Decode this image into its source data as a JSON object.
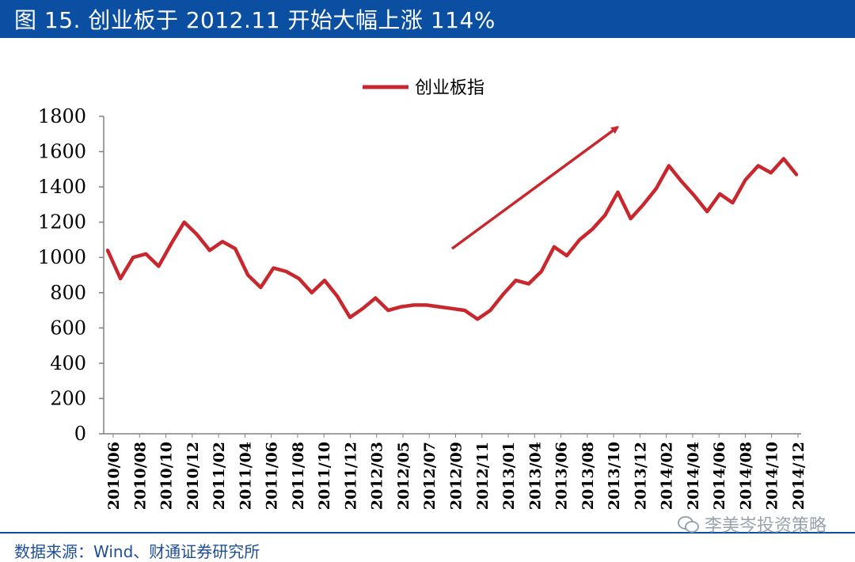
{
  "header": {
    "title": "图 15. 创业板于 2012.11 开始大幅上涨 114%"
  },
  "footer": {
    "source": "数据来源：Wind、财通证券研究所",
    "watermark": "李美岑投资策略",
    "watermark_icon": "wechat-icon"
  },
  "colors": {
    "title_bar": "#0b4fa3",
    "series": "#c8282d",
    "footer_text": "#1f4e99"
  },
  "chart_data": {
    "type": "line",
    "title": "",
    "xlabel": "",
    "ylabel": "",
    "ylim": [
      0,
      1800
    ],
    "yticks": [
      0,
      200,
      400,
      600,
      800,
      1000,
      1200,
      1400,
      1600,
      1800
    ],
    "xticks": [
      "2010/06",
      "2010/08",
      "2010/10",
      "2010/12",
      "2011/02",
      "2011/04",
      "2011/06",
      "2011/08",
      "2011/10",
      "2011/12",
      "2012/03",
      "2012/05",
      "2012/07",
      "2012/09",
      "2012/11",
      "2013/01",
      "2013/04",
      "2013/06",
      "2013/08",
      "2013/10",
      "2013/12",
      "2014/02",
      "2014/04",
      "2014/06",
      "2014/08",
      "2014/10",
      "2014/12"
    ],
    "grid": false,
    "legend": "top-center",
    "annotations": [
      {
        "type": "arrow",
        "from": [
          "2012/09",
          1050
        ],
        "to": [
          "2013/10",
          1740
        ]
      }
    ],
    "series": [
      {
        "name": "创业板指",
        "x": [
          "2010/06",
          "2010/07",
          "2010/08",
          "2010/09",
          "2010/10",
          "2010/11",
          "2010/12",
          "2011/01",
          "2011/02",
          "2011/03",
          "2011/04",
          "2011/05",
          "2011/06",
          "2011/07",
          "2011/08",
          "2011/09",
          "2011/10",
          "2011/11",
          "2011/12",
          "2012/01",
          "2012/02",
          "2012/03",
          "2012/04",
          "2012/05",
          "2012/06",
          "2012/07",
          "2012/08",
          "2012/09",
          "2012/10",
          "2012/11",
          "2012/12",
          "2013/01",
          "2013/02",
          "2013/03",
          "2013/04",
          "2013/05",
          "2013/06",
          "2013/07",
          "2013/08",
          "2013/09",
          "2013/10",
          "2013/11",
          "2013/12",
          "2014/01",
          "2014/02",
          "2014/03",
          "2014/04",
          "2014/05",
          "2014/06",
          "2014/07",
          "2014/08",
          "2014/09",
          "2014/10",
          "2014/11",
          "2014/12"
        ],
        "values": [
          1040,
          880,
          1000,
          1020,
          950,
          1080,
          1200,
          1130,
          1040,
          1090,
          1050,
          900,
          830,
          940,
          920,
          880,
          800,
          870,
          780,
          660,
          710,
          770,
          700,
          720,
          730,
          730,
          720,
          710,
          700,
          650,
          700,
          790,
          870,
          850,
          920,
          1060,
          1010,
          1100,
          1160,
          1240,
          1370,
          1220,
          1300,
          1390,
          1520,
          1430,
          1350,
          1260,
          1360,
          1310,
          1440,
          1520,
          1480,
          1560,
          1470
        ]
      }
    ]
  }
}
